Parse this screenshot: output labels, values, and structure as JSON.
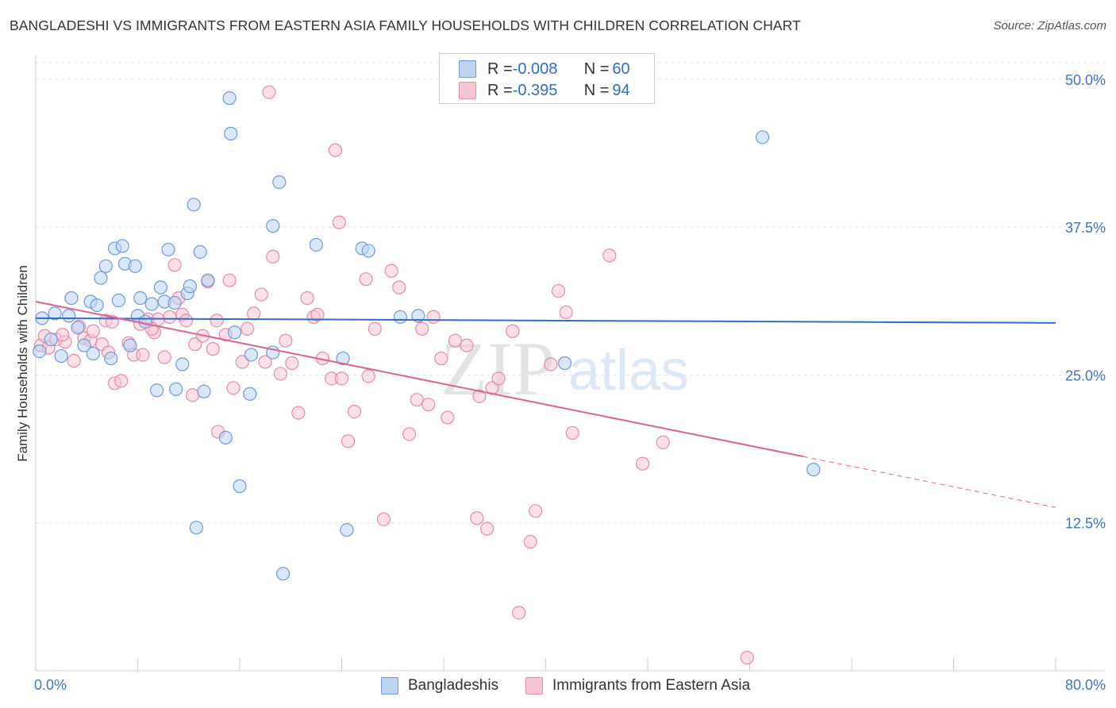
{
  "title": "BANGLADESHI VS IMMIGRANTS FROM EASTERN ASIA FAMILY HOUSEHOLDS WITH CHILDREN CORRELATION CHART",
  "source": "Source: ZipAtlas.com",
  "watermark": {
    "zip": "ZIP",
    "atlas": "atlas"
  },
  "colors": {
    "blue_fill": "#bcd3f2",
    "blue_stroke": "#6f9ad8",
    "blue_line": "#2f6dc7",
    "pink_fill": "#f7c6d5",
    "pink_stroke": "#e68aa8",
    "pink_line": "#e0628e",
    "axis_text": "#3f74c6",
    "grid": "#e3e3e3"
  },
  "legend": {
    "rows": [
      {
        "r_label": "R = ",
        "r_value": "-0.008",
        "n_label": "N = ",
        "n_value": "60",
        "color": "#bcd3f2"
      },
      {
        "r_label": "R = ",
        "r_value": "-0.395",
        "n_label": "N = ",
        "n_value": "94",
        "color": "#f7c6d5"
      }
    ]
  },
  "bottom_legend": [
    "Bangladeshis",
    "Immigrants from Eastern Asia"
  ],
  "chart_data": {
    "type": "scatter",
    "title": "BANGLADESHI VS IMMIGRANTS FROM EASTERN ASIA FAMILY HOUSEHOLDS WITH CHILDREN CORRELATION CHART",
    "xlabel": "",
    "ylabel": "Family Households with Children",
    "xlim": [
      0,
      80
    ],
    "ylim": [
      0,
      52
    ],
    "x_tick_labels": [
      "0.0%",
      "80.0%"
    ],
    "y_ticks": [
      12.5,
      25.0,
      37.5,
      50.0
    ],
    "y_tick_labels": [
      "12.5%",
      "25.0%",
      "37.5%",
      "50.0%"
    ],
    "grid": true,
    "legend_position": "top-center",
    "series": [
      {
        "name": "Bangladeshis",
        "trend": {
          "x0": 0,
          "y0": 29.8,
          "x1": 80,
          "y1": 29.4,
          "dashed_from": null
        },
        "points": [
          [
            0.3,
            27.0
          ],
          [
            0.5,
            29.8
          ],
          [
            1.2,
            28.0
          ],
          [
            1.5,
            30.2
          ],
          [
            2.0,
            26.6
          ],
          [
            2.6,
            30.0
          ],
          [
            2.8,
            31.5
          ],
          [
            3.3,
            29.0
          ],
          [
            3.8,
            27.5
          ],
          [
            4.3,
            31.2
          ],
          [
            4.5,
            26.8
          ],
          [
            4.8,
            30.9
          ],
          [
            5.1,
            33.2
          ],
          [
            5.5,
            34.2
          ],
          [
            5.9,
            26.4
          ],
          [
            6.2,
            35.7
          ],
          [
            6.5,
            31.3
          ],
          [
            6.8,
            35.9
          ],
          [
            7.0,
            34.4
          ],
          [
            7.4,
            27.5
          ],
          [
            7.8,
            34.2
          ],
          [
            8.0,
            30.0
          ],
          [
            8.2,
            31.5
          ],
          [
            8.6,
            29.5
          ],
          [
            9.1,
            31.0
          ],
          [
            9.5,
            23.7
          ],
          [
            9.8,
            32.4
          ],
          [
            10.1,
            31.2
          ],
          [
            10.4,
            35.6
          ],
          [
            10.9,
            31.1
          ],
          [
            11.0,
            23.8
          ],
          [
            11.5,
            25.9
          ],
          [
            11.9,
            31.9
          ],
          [
            12.1,
            32.5
          ],
          [
            12.4,
            39.4
          ],
          [
            12.9,
            35.4
          ],
          [
            13.2,
            23.6
          ],
          [
            13.5,
            33.0
          ],
          [
            14.9,
            19.7
          ],
          [
            15.2,
            48.4
          ],
          [
            15.3,
            45.4
          ],
          [
            15.6,
            28.6
          ],
          [
            16.0,
            15.6
          ],
          [
            16.8,
            23.4
          ],
          [
            16.9,
            26.7
          ],
          [
            18.6,
            26.9
          ],
          [
            18.6,
            37.6
          ],
          [
            19.1,
            41.3
          ],
          [
            19.4,
            8.2
          ],
          [
            22.0,
            36.0
          ],
          [
            24.1,
            26.4
          ],
          [
            25.6,
            35.7
          ],
          [
            26.1,
            35.5
          ],
          [
            28.6,
            29.9
          ],
          [
            30.0,
            30.0
          ],
          [
            41.5,
            26.0
          ],
          [
            57.0,
            45.1
          ],
          [
            61.0,
            17.0
          ],
          [
            12.6,
            12.1
          ],
          [
            24.4,
            11.9
          ]
        ]
      },
      {
        "name": "Immigrants from Eastern Asia",
        "trend": {
          "x0": 0,
          "y0": 31.2,
          "x1": 80,
          "y1": 13.8,
          "dashed_from": 60.2
        },
        "points": [
          [
            0.4,
            27.5
          ],
          [
            0.7,
            28.3
          ],
          [
            1.0,
            27.3
          ],
          [
            1.6,
            28.0
          ],
          [
            2.3,
            27.8
          ],
          [
            3.0,
            26.2
          ],
          [
            3.4,
            29.1
          ],
          [
            3.8,
            28.1
          ],
          [
            4.3,
            27.9
          ],
          [
            4.5,
            28.7
          ],
          [
            5.2,
            27.6
          ],
          [
            5.5,
            29.6
          ],
          [
            5.7,
            26.9
          ],
          [
            6.2,
            24.3
          ],
          [
            6.7,
            24.5
          ],
          [
            7.3,
            27.7
          ],
          [
            7.7,
            26.7
          ],
          [
            8.2,
            29.3
          ],
          [
            8.4,
            26.7
          ],
          [
            8.8,
            29.7
          ],
          [
            9.3,
            28.6
          ],
          [
            9.6,
            29.7
          ],
          [
            10.1,
            26.5
          ],
          [
            10.5,
            29.9
          ],
          [
            10.9,
            34.3
          ],
          [
            11.2,
            31.5
          ],
          [
            11.5,
            30.1
          ],
          [
            11.8,
            29.6
          ],
          [
            12.3,
            23.3
          ],
          [
            12.5,
            27.6
          ],
          [
            13.1,
            28.3
          ],
          [
            13.5,
            32.9
          ],
          [
            14.2,
            29.6
          ],
          [
            14.3,
            20.2
          ],
          [
            14.9,
            28.4
          ],
          [
            15.2,
            33.0
          ],
          [
            15.5,
            23.9
          ],
          [
            16.2,
            26.1
          ],
          [
            16.6,
            28.9
          ],
          [
            17.1,
            30.2
          ],
          [
            17.7,
            31.8
          ],
          [
            18.0,
            26.1
          ],
          [
            18.6,
            35.0
          ],
          [
            19.2,
            25.1
          ],
          [
            19.6,
            27.9
          ],
          [
            20.1,
            26.0
          ],
          [
            20.6,
            21.8
          ],
          [
            21.3,
            31.5
          ],
          [
            21.8,
            29.9
          ],
          [
            22.1,
            30.1
          ],
          [
            22.5,
            26.4
          ],
          [
            23.2,
            24.7
          ],
          [
            23.5,
            44.0
          ],
          [
            23.8,
            37.9
          ],
          [
            24.0,
            24.7
          ],
          [
            24.5,
            19.4
          ],
          [
            25.0,
            21.9
          ],
          [
            25.9,
            33.1
          ],
          [
            26.1,
            24.9
          ],
          [
            26.6,
            28.9
          ],
          [
            27.3,
            12.8
          ],
          [
            27.9,
            33.8
          ],
          [
            28.5,
            32.4
          ],
          [
            29.3,
            20.0
          ],
          [
            29.9,
            22.9
          ],
          [
            30.3,
            28.9
          ],
          [
            30.8,
            22.5
          ],
          [
            31.2,
            29.9
          ],
          [
            31.8,
            26.4
          ],
          [
            32.3,
            21.4
          ],
          [
            32.9,
            27.9
          ],
          [
            33.8,
            27.5
          ],
          [
            34.6,
            12.9
          ],
          [
            34.8,
            23.2
          ],
          [
            35.4,
            12.0
          ],
          [
            35.8,
            23.9
          ],
          [
            36.3,
            24.7
          ],
          [
            37.4,
            28.7
          ],
          [
            37.9,
            4.9
          ],
          [
            38.8,
            10.9
          ],
          [
            39.2,
            13.5
          ],
          [
            40.4,
            25.9
          ],
          [
            41.0,
            32.1
          ],
          [
            41.6,
            30.3
          ],
          [
            42.1,
            20.1
          ],
          [
            45.0,
            35.1
          ],
          [
            47.6,
            17.5
          ],
          [
            49.2,
            19.3
          ],
          [
            55.8,
            1.1
          ],
          [
            18.3,
            48.9
          ],
          [
            9.1,
            28.9
          ],
          [
            13.9,
            27.2
          ],
          [
            6.0,
            29.5
          ],
          [
            2.1,
            28.4
          ]
        ]
      }
    ]
  }
}
